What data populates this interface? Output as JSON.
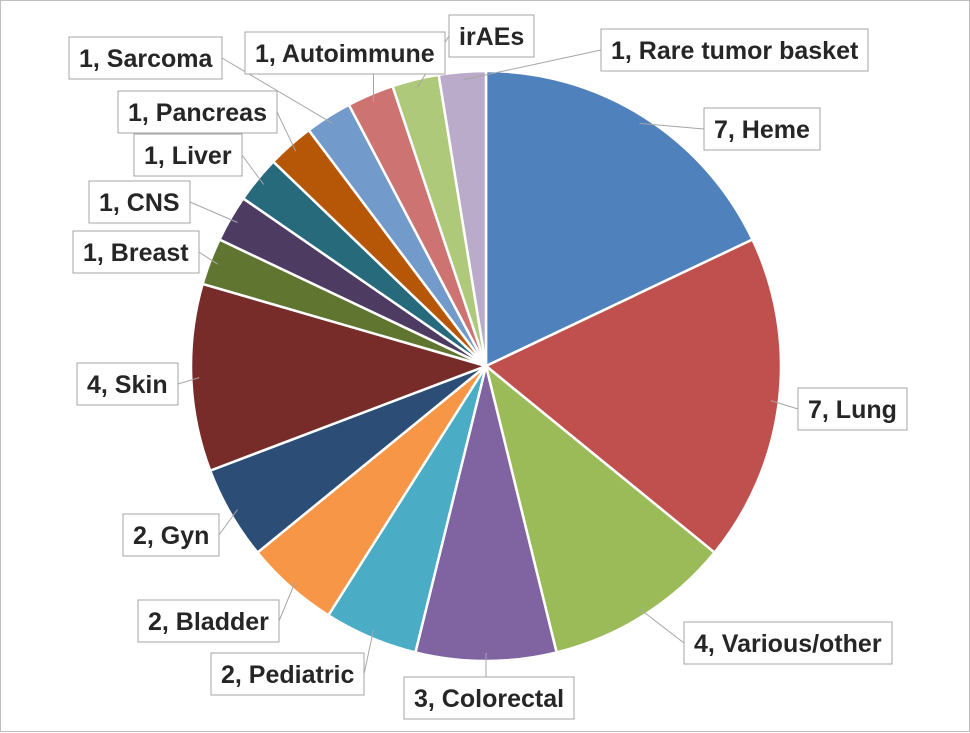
{
  "chart_data": {
    "type": "pie",
    "slices": [
      {
        "label": "7, Heme",
        "name": "Heme",
        "value": 7,
        "color": "#4f81bd"
      },
      {
        "label": "7, Lung",
        "name": "Lung",
        "value": 7,
        "color": "#c0504d"
      },
      {
        "label": "4, Various/other",
        "name": "Various/other",
        "value": 4,
        "color": "#9bbb59"
      },
      {
        "label": "3, Colorectal",
        "name": "Colorectal",
        "value": 3,
        "color": "#8064a2"
      },
      {
        "label": "2, Pediatric",
        "name": "Pediatric",
        "value": 2,
        "color": "#4bacc6"
      },
      {
        "label": "2, Bladder",
        "name": "Bladder",
        "value": 2,
        "color": "#f79646"
      },
      {
        "label": "2, Gyn",
        "name": "Gyn",
        "value": 2,
        "color": "#2c4d75"
      },
      {
        "label": "4, Skin",
        "name": "Skin",
        "value": 4,
        "color": "#772c2a"
      },
      {
        "label": "1, Breast",
        "name": "Breast",
        "value": 1,
        "color": "#5f7530"
      },
      {
        "label": "1, CNS",
        "name": "CNS",
        "value": 1,
        "color": "#4d3b62"
      },
      {
        "label": "1, Liver",
        "name": "Liver",
        "value": 1,
        "color": "#276a7c"
      },
      {
        "label": "1, Pancreas",
        "name": "Pancreas",
        "value": 1,
        "color": "#b65708"
      },
      {
        "label": "1, Sarcoma",
        "name": "Sarcoma",
        "value": 1,
        "color": "#729aca"
      },
      {
        "label": "1, Autoimmune",
        "name": "Autoimmune",
        "value": 1,
        "color": "#cd7371"
      },
      {
        "label": "irAEs",
        "name": "irAEs",
        "value": 1,
        "color": "#afc97a"
      },
      {
        "label": "1, Rare tumor basket",
        "name": "Rare tumor basket",
        "value": 1,
        "color": "#b9abc9"
      }
    ],
    "start": "12 o'clock",
    "direction": "clockwise",
    "slice_border_color": "#ffffff",
    "legend": "none"
  }
}
